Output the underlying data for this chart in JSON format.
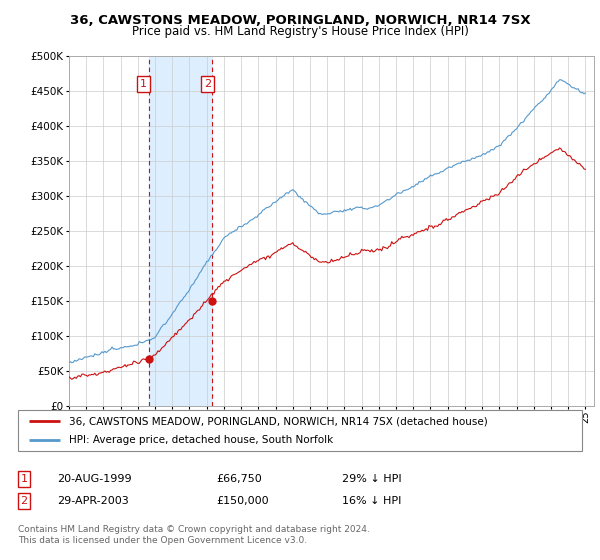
{
  "title1": "36, CAWSTONS MEADOW, PORINGLAND, NORWICH, NR14 7SX",
  "title2": "Price paid vs. HM Land Registry's House Price Index (HPI)",
  "background_color": "#ffffff",
  "grid_color": "#cccccc",
  "hpi_color": "#5599cc",
  "price_color": "#cc1111",
  "shade_color": "#ddeeff",
  "purchase1_date": 1999.64,
  "purchase1_price": 66750,
  "purchase2_date": 2003.33,
  "purchase2_price": 150000,
  "legend_label_price": "36, CAWSTONS MEADOW, PORINGLAND, NORWICH, NR14 7SX (detached house)",
  "legend_label_hpi": "HPI: Average price, detached house, South Norfolk",
  "note1_date": "20-AUG-1999",
  "note1_price": "£66,750",
  "note1_hpi": "29% ↓ HPI",
  "note2_date": "29-APR-2003",
  "note2_price": "£150,000",
  "note2_hpi": "16% ↓ HPI",
  "footer": "Contains HM Land Registry data © Crown copyright and database right 2024.\nThis data is licensed under the Open Government Licence v3.0.",
  "xmin": 1995.0,
  "xmax": 2025.5,
  "ymin": 0,
  "ymax": 500000,
  "yticks": [
    0,
    50000,
    100000,
    150000,
    200000,
    250000,
    300000,
    350000,
    400000,
    450000,
    500000
  ]
}
